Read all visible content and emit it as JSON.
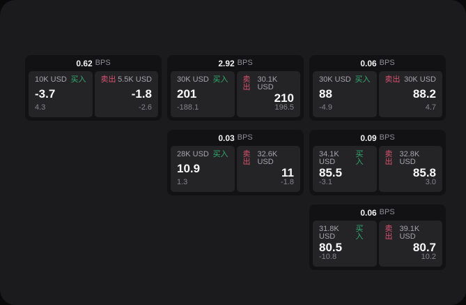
{
  "labels": {
    "bps_unit": "BPS",
    "buy": "买入",
    "sell": "卖出"
  },
  "colors": {
    "page_background": "#0a0a0b",
    "panel_background": "#1b1b1d",
    "card_background": "#121214",
    "tile_background": "#242427",
    "buy_accent": "#31ab6e",
    "sell_accent": "#d9536f"
  },
  "cards": [
    {
      "bps": "0.62",
      "row": 1,
      "col": 1,
      "buy": {
        "amount": "10K USD",
        "price": "-3.7",
        "delta": "4.3"
      },
      "sell": {
        "amount": "5.5K USD",
        "price": "-1.8",
        "delta": "-2.6"
      }
    },
    {
      "bps": "2.92",
      "row": 1,
      "col": 2,
      "buy": {
        "amount": "30K USD",
        "price": "201",
        "delta": "-188.1"
      },
      "sell": {
        "amount": "30.1K USD",
        "price": "210",
        "delta": "196.5"
      }
    },
    {
      "bps": "0.06",
      "row": 1,
      "col": 3,
      "buy": {
        "amount": "30K USD",
        "price": "88",
        "delta": "-4.9"
      },
      "sell": {
        "amount": "30K USD",
        "price": "88.2",
        "delta": "4.7"
      }
    },
    {
      "bps": "0.03",
      "row": 2,
      "col": 2,
      "buy": {
        "amount": "28K USD",
        "price": "10.9",
        "delta": "1.3"
      },
      "sell": {
        "amount": "32.6K USD",
        "price": "11",
        "delta": "-1.8"
      }
    },
    {
      "bps": "0.09",
      "row": 2,
      "col": 3,
      "buy": {
        "amount": "34.1K USD",
        "price": "85.5",
        "delta": "-3.1"
      },
      "sell": {
        "amount": "32.8K USD",
        "price": "85.8",
        "delta": "3.0"
      }
    },
    {
      "bps": "0.06",
      "row": 3,
      "col": 3,
      "buy": {
        "amount": "31.8K USD",
        "price": "80.5",
        "delta": "-10.8"
      },
      "sell": {
        "amount": "39.1K USD",
        "price": "80.7",
        "delta": "10.2"
      }
    }
  ]
}
